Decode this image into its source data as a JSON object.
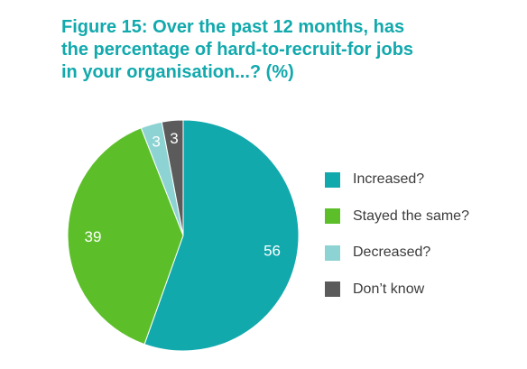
{
  "chart_data": {
    "type": "pie",
    "title_lines": [
      "Figure 15: Over the past 12 months, has",
      "the percentage of hard-to-recruit-for jobs",
      "in your organisation...? (%)"
    ],
    "categories": [
      "Increased?",
      "Stayed the same?",
      "Decreased?",
      "Don’t know"
    ],
    "values": [
      56,
      39,
      3,
      3
    ],
    "data_labels": [
      "56",
      "39",
      "3",
      "3"
    ],
    "colors": [
      "#12a9ad",
      "#5cbf2a",
      "#8ed3d3",
      "#5b5b5b"
    ],
    "start": "12 o'clock",
    "direction": "clockwise",
    "legend_position": "right"
  }
}
